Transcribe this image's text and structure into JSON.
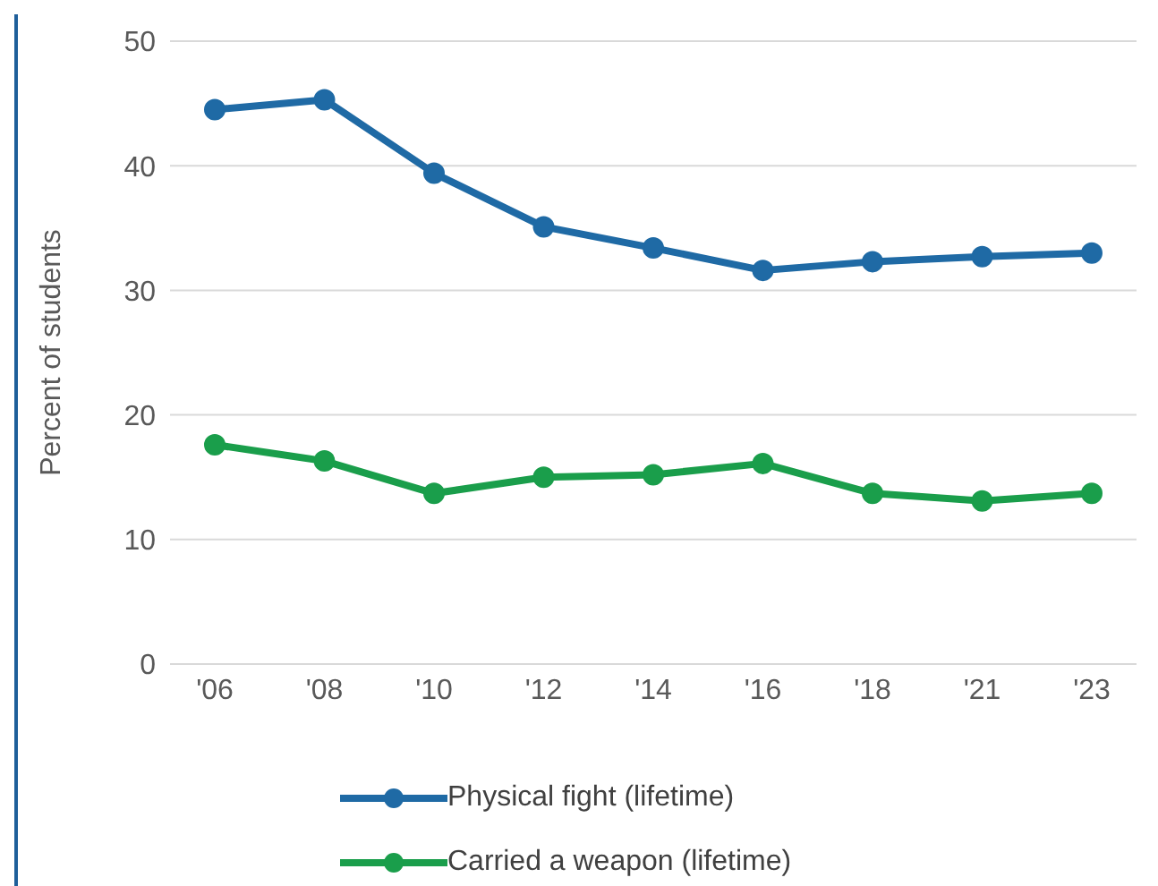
{
  "chart_data": {
    "type": "line",
    "ylabel": "Percent of students",
    "categories": [
      "'06",
      "'08",
      "'10",
      "'12",
      "'14",
      "'16",
      "'18",
      "'21",
      "'23"
    ],
    "series": [
      {
        "name": "Physical fight (lifetime)",
        "color": "#1f6aa5",
        "values": [
          44.5,
          45.3,
          39.4,
          35.1,
          33.4,
          31.6,
          32.3,
          32.7,
          33.0
        ]
      },
      {
        "name": "Carried a weapon (lifetime)",
        "color": "#1a9e4b",
        "values": [
          17.6,
          16.3,
          13.7,
          15.0,
          15.2,
          16.1,
          13.7,
          13.1,
          13.7
        ]
      }
    ],
    "ylim": [
      0,
      50
    ],
    "yticks": [
      0,
      10,
      20,
      30,
      40,
      50
    ],
    "grid": "y",
    "legend": "bottom",
    "marker": "circle",
    "line_style": "solid"
  }
}
